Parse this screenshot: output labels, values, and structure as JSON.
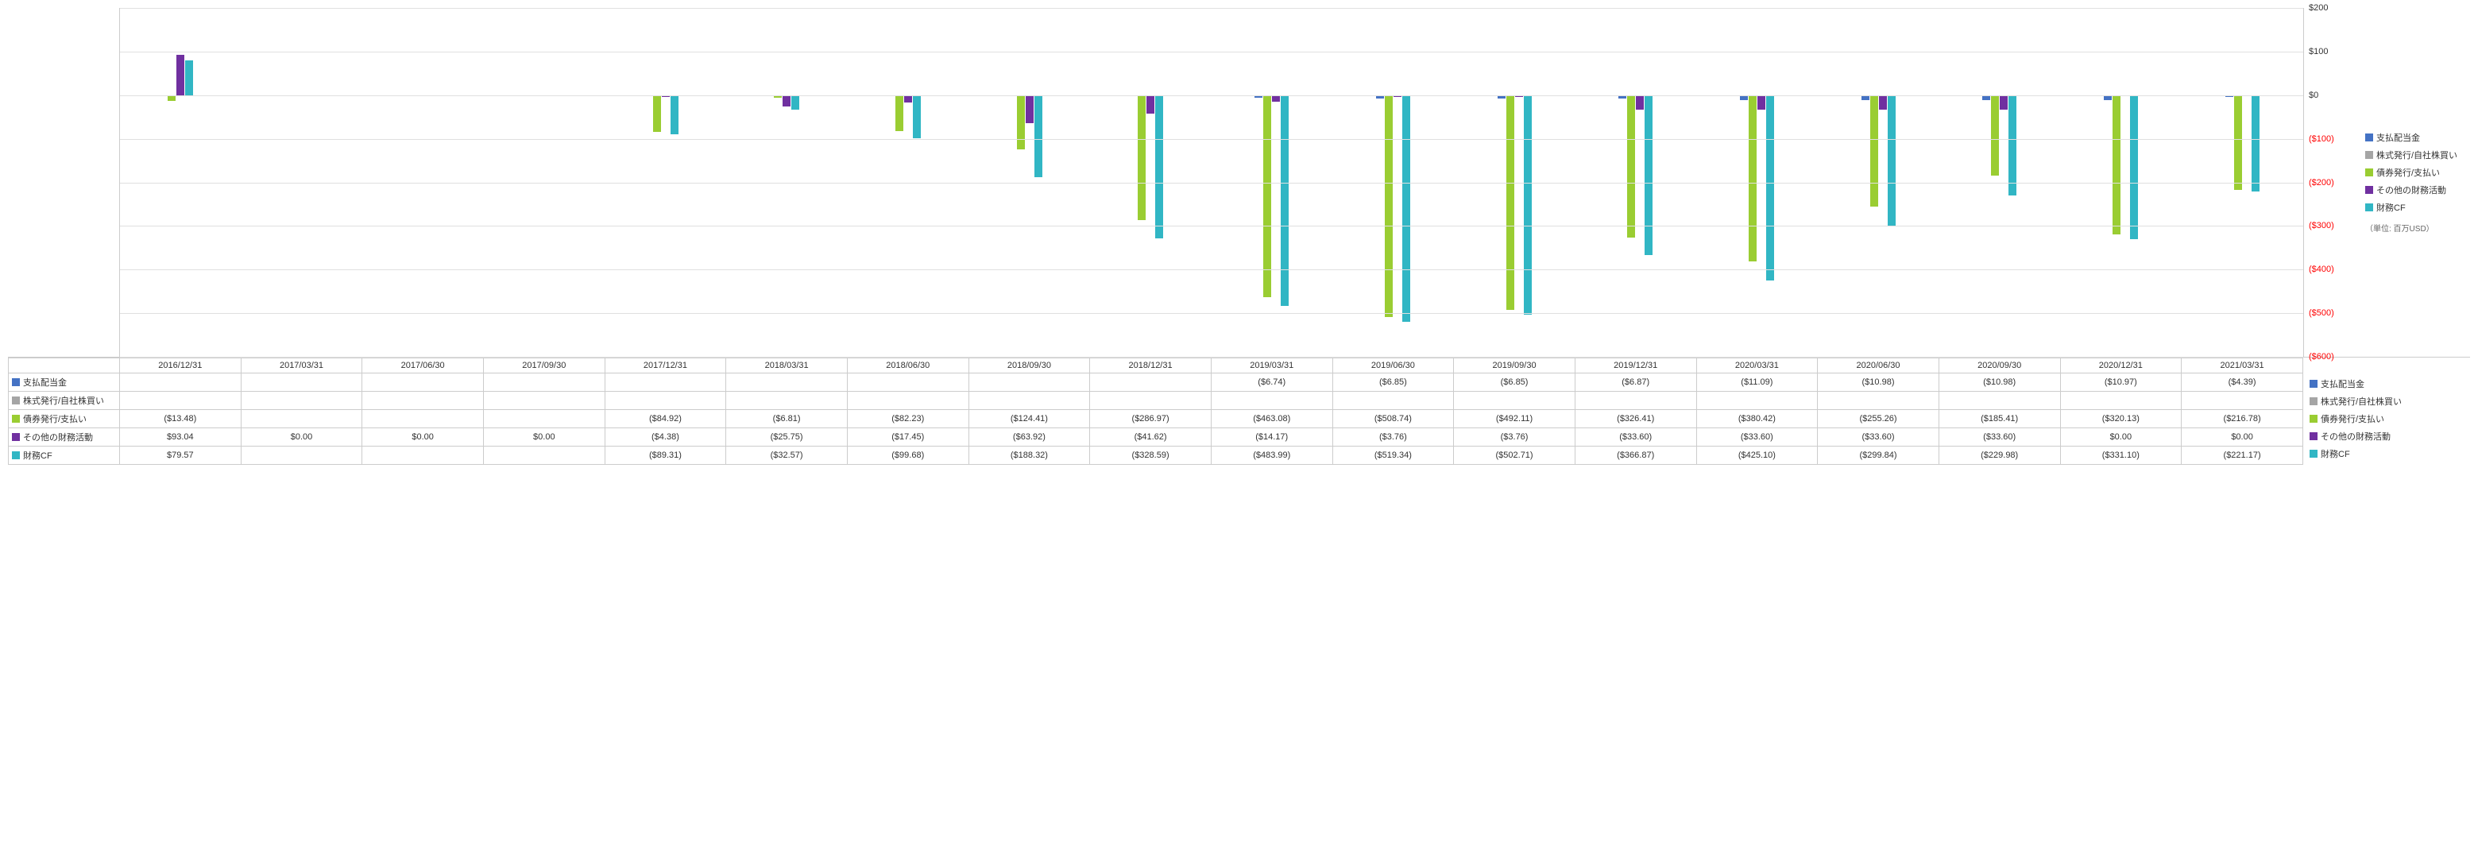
{
  "chart": {
    "type": "bar",
    "ylim": [
      -600,
      200
    ],
    "ytick_step": 100,
    "yticks": [
      {
        "v": 200,
        "label": "$200",
        "neg": false
      },
      {
        "v": 100,
        "label": "$100",
        "neg": false
      },
      {
        "v": 0,
        "label": "$0",
        "neg": false
      },
      {
        "v": -100,
        "label": "($100)",
        "neg": true
      },
      {
        "v": -200,
        "label": "($200)",
        "neg": true
      },
      {
        "v": -300,
        "label": "($300)",
        "neg": true
      },
      {
        "v": -400,
        "label": "($400)",
        "neg": true
      },
      {
        "v": -500,
        "label": "($500)",
        "neg": true
      },
      {
        "v": -600,
        "label": "($600)",
        "neg": true
      }
    ],
    "grid_color": "#e0e0e0",
    "background_color": "#ffffff",
    "unit_label": "（単位: 百万USD）"
  },
  "series": [
    {
      "key": "dividends",
      "label": "支払配当金",
      "color": "#4472c4"
    },
    {
      "key": "stock",
      "label": "株式発行/自社株買い",
      "color": "#a5a5a5"
    },
    {
      "key": "debt",
      "label": "債券発行/支払い",
      "color": "#9acd32"
    },
    {
      "key": "other",
      "label": "その他の財務活動",
      "color": "#7030a0"
    },
    {
      "key": "zaimu",
      "label": "財務CF",
      "color": "#31b6c4"
    }
  ],
  "periods": [
    "2016/12/31",
    "2017/03/31",
    "2017/06/30",
    "2017/09/30",
    "2017/12/31",
    "2018/03/31",
    "2018/06/30",
    "2018/09/30",
    "2018/12/31",
    "2019/03/31",
    "2019/06/30",
    "2019/09/30",
    "2019/12/31",
    "2020/03/31",
    "2020/06/30",
    "2020/09/30",
    "2020/12/31",
    "2021/03/31"
  ],
  "values": {
    "dividends": [
      null,
      null,
      null,
      null,
      null,
      null,
      null,
      null,
      null,
      -6.74,
      -6.85,
      -6.85,
      -6.87,
      -11.09,
      -10.98,
      -10.98,
      -10.97,
      -4.39
    ],
    "stock": [
      null,
      null,
      null,
      null,
      null,
      null,
      null,
      null,
      null,
      null,
      null,
      null,
      null,
      null,
      null,
      null,
      null,
      null
    ],
    "debt": [
      -13.48,
      null,
      null,
      null,
      -84.92,
      -6.81,
      -82.23,
      -124.41,
      -286.97,
      -463.08,
      -508.74,
      -492.11,
      -326.41,
      -380.42,
      -255.26,
      -185.41,
      -320.13,
      -216.78
    ],
    "other": [
      93.04,
      0.0,
      0.0,
      0.0,
      -4.38,
      -25.75,
      -17.45,
      -63.92,
      -41.62,
      -14.17,
      -3.76,
      -3.76,
      -33.6,
      -33.6,
      -33.6,
      -33.6,
      0.0,
      0.0
    ],
    "zaimu": [
      79.57,
      null,
      null,
      null,
      -89.31,
      -32.57,
      -99.68,
      -188.32,
      -328.59,
      -483.99,
      -519.34,
      -502.71,
      -366.87,
      -425.1,
      -299.84,
      -229.98,
      -331.1,
      -221.17
    ]
  },
  "display": {
    "dividends": [
      "",
      "",
      "",
      "",
      "",
      "",
      "",
      "",
      "",
      "($6.74)",
      "($6.85)",
      "($6.85)",
      "($6.87)",
      "($11.09)",
      "($10.98)",
      "($10.98)",
      "($10.97)",
      "($4.39)"
    ],
    "stock": [
      "",
      "",
      "",
      "",
      "",
      "",
      "",
      "",
      "",
      "",
      "",
      "",
      "",
      "",
      "",
      "",
      "",
      ""
    ],
    "debt": [
      "($13.48)",
      "",
      "",
      "",
      "($84.92)",
      "($6.81)",
      "($82.23)",
      "($124.41)",
      "($286.97)",
      "($463.08)",
      "($508.74)",
      "($492.11)",
      "($326.41)",
      "($380.42)",
      "($255.26)",
      "($185.41)",
      "($320.13)",
      "($216.78)"
    ],
    "other": [
      "$93.04",
      "$0.00",
      "$0.00",
      "$0.00",
      "($4.38)",
      "($25.75)",
      "($17.45)",
      "($63.92)",
      "($41.62)",
      "($14.17)",
      "($3.76)",
      "($3.76)",
      "($33.60)",
      "($33.60)",
      "($33.60)",
      "($33.60)",
      "$0.00",
      "$0.00"
    ],
    "zaimu": [
      "$79.57",
      "",
      "",
      "",
      "($89.31)",
      "($32.57)",
      "($99.68)",
      "($188.32)",
      "($328.59)",
      "($483.99)",
      "($519.34)",
      "($502.71)",
      "($366.87)",
      "($425.10)",
      "($299.84)",
      "($229.98)",
      "($331.10)",
      "($221.17)"
    ]
  }
}
